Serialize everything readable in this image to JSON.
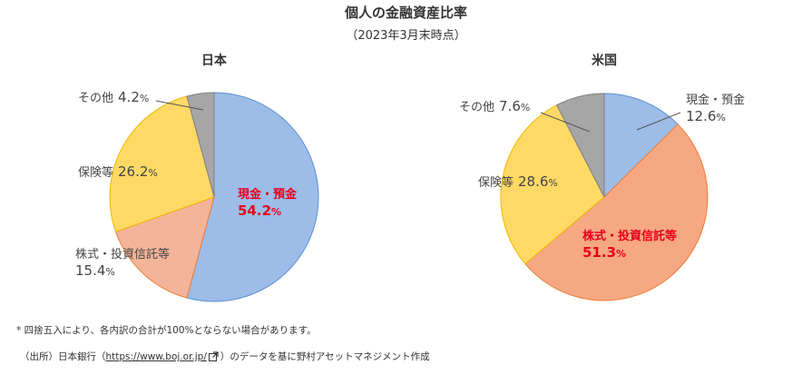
{
  "header": {
    "title": "個人の金融資産比率",
    "subtitle": "（2023年3月末時点）"
  },
  "colors": {
    "cash": "#9dbde8",
    "cash_edge": "#5b8fd0",
    "stocks_japan": "#f4b49a",
    "stocks_us": "#f6a882",
    "stocks_edge": "#ed7d31",
    "insurance": "#ffd966",
    "insurance_edge": "#f0b800",
    "other": "#a6a6a6",
    "other_edge": "#7f7f7f",
    "highlight": "#e8001c"
  },
  "chart_data": [
    {
      "type": "pie",
      "title": "日本",
      "categories": [
        "現金・預金",
        "株式・投資信託等",
        "保険等",
        "その他"
      ],
      "values": [
        54.2,
        15.4,
        26.2,
        4.2
      ],
      "labels": [
        {
          "name": "現金・預金",
          "value": "54.2",
          "unit": "%"
        },
        {
          "name": "株式・投資信託等",
          "value": "15.4",
          "unit": "%"
        },
        {
          "name": "保険等",
          "value": "26.2",
          "unit": "%"
        },
        {
          "name": "その他",
          "value": "4.2",
          "unit": "%"
        }
      ]
    },
    {
      "type": "pie",
      "title": "米国",
      "categories": [
        "現金・預金",
        "株式・投資信託等",
        "保険等",
        "その他"
      ],
      "values": [
        12.6,
        51.3,
        28.6,
        7.6
      ],
      "labels": [
        {
          "name": "現金・預金",
          "value": "12.6",
          "unit": "%"
        },
        {
          "name": "株式・投資信託等",
          "value": "51.3",
          "unit": "%"
        },
        {
          "name": "保険等",
          "value": "28.6",
          "unit": "%"
        },
        {
          "name": "その他",
          "value": "7.6",
          "unit": "%"
        }
      ]
    }
  ],
  "footnote": "* 四捨五入により、各内訳の合計が100%とならない場合があります。",
  "source": {
    "prefix": "（出所）日本銀行（",
    "link_text": "https://www.boj.or.jp/",
    "suffix": "）のデータを基に野村アセットマネジメント作成",
    "icon": "external-link-icon"
  }
}
